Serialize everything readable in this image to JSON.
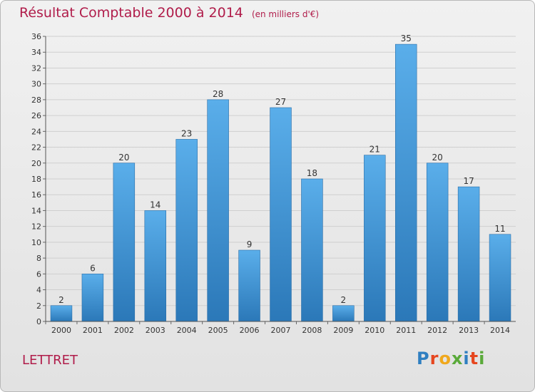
{
  "header": {
    "title": "Résultat Comptable 2000 à 2014",
    "subtitle": "(en milliers d'€)"
  },
  "footer": {
    "commune": "LETTRET",
    "logo_letters": [
      {
        "ch": "P",
        "color": "#2f7fc1"
      },
      {
        "ch": "r",
        "color": "#e6461f"
      },
      {
        "ch": "o",
        "color": "#f0a81c"
      },
      {
        "ch": "x",
        "color": "#5aaa3a"
      },
      {
        "ch": "i",
        "color": "#2f7fc1"
      },
      {
        "ch": "t",
        "color": "#e6461f"
      },
      {
        "ch": "i",
        "color": "#5aaa3a"
      }
    ]
  },
  "chart_data": {
    "type": "bar",
    "title": "Résultat Comptable 2000 à 2014",
    "subtitle": "(en milliers d'€)",
    "categories": [
      "2000",
      "2001",
      "2002",
      "2003",
      "2004",
      "2005",
      "2006",
      "2007",
      "2008",
      "2009",
      "2010",
      "2011",
      "2012",
      "2013",
      "2014"
    ],
    "values": [
      2,
      6,
      20,
      14,
      23,
      28,
      9,
      27,
      18,
      2,
      21,
      35,
      20,
      17,
      11
    ],
    "ylim": [
      0,
      36
    ],
    "ytick_step": 2,
    "grid": true,
    "bar_color_top": "#5aaeea",
    "bar_color_bottom": "#2b78b8"
  }
}
